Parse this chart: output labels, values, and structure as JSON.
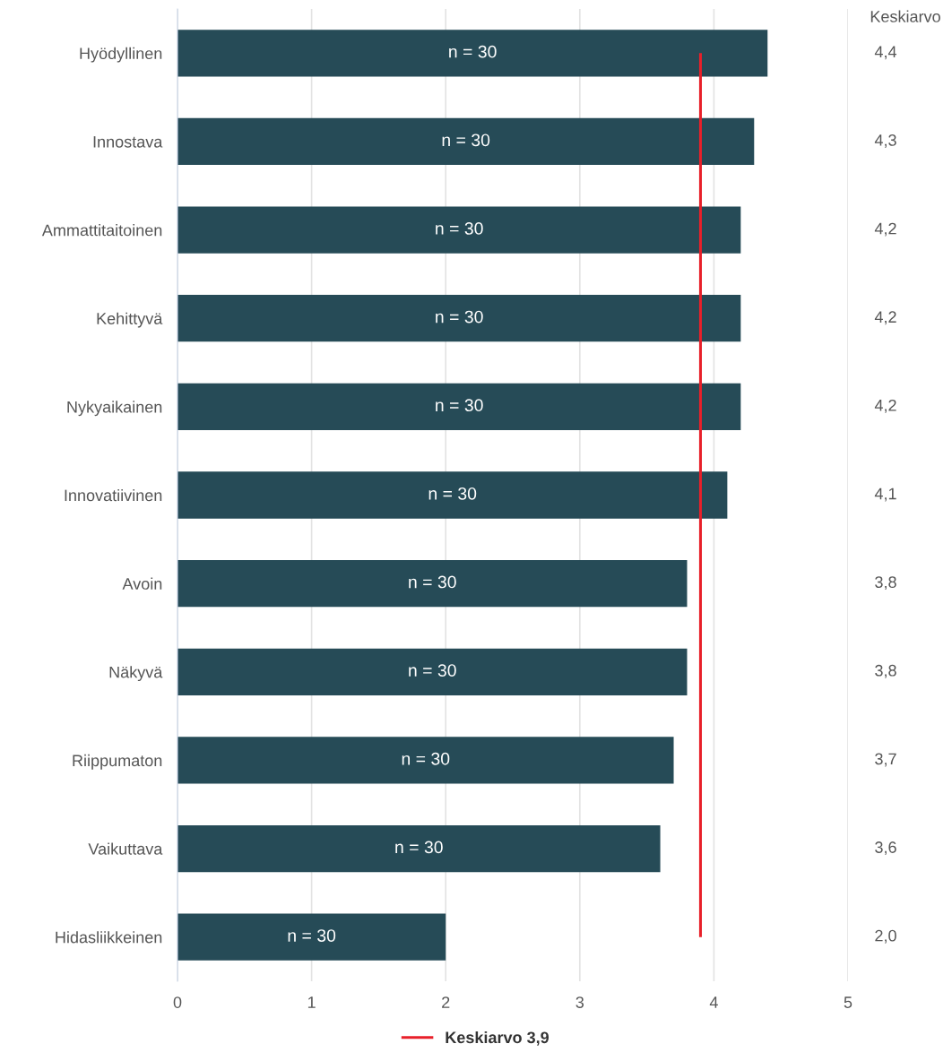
{
  "chart_data": {
    "type": "bar",
    "orientation": "horizontal",
    "categories": [
      "Hyödyllinen",
      "Innostava",
      "Ammattitaitoinen",
      "Kehittyvä",
      "Nykyaikainen",
      "Innovatiivinen",
      "Avoin",
      "Näkyvä",
      "Riippumaton",
      "Vaikuttava",
      "Hidasliikkeinen"
    ],
    "values": [
      4.4,
      4.3,
      4.2,
      4.2,
      4.2,
      4.1,
      3.8,
      3.8,
      3.7,
      3.6,
      2.0
    ],
    "value_labels": [
      "4,4",
      "4,3",
      "4,2",
      "4,2",
      "4,2",
      "4,1",
      "3,8",
      "3,8",
      "3,7",
      "3,6",
      "2,0"
    ],
    "color": "#264b57",
    "xlim": [
      0,
      5
    ],
    "xticks": [
      0,
      1,
      2,
      3,
      4,
      5
    ],
    "grid": "x",
    "legend": "bottom",
    "ref_lines": [
      {
        "axis": "x",
        "value": 3.9,
        "label": "Keskiarvo 3,9",
        "color": "#e8202a"
      }
    ],
    "annotations": [
      "Keskiarvo",
      "n = 30",
      "n = 30",
      "n = 30",
      "n = 30",
      "n = 30",
      "n = 30",
      "n = 30",
      "n = 30",
      "n = 30",
      "n = 30",
      "n = 30"
    ]
  }
}
